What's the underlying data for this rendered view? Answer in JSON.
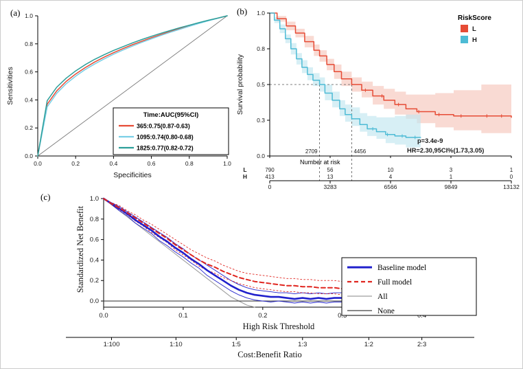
{
  "figure": {
    "background": "#ffffff",
    "border_color": "#cccccc"
  },
  "panels": {
    "a": {
      "label": "(a)"
    },
    "b": {
      "label": "(b)"
    },
    "c": {
      "label": "(c)"
    }
  },
  "chart_data": [
    {
      "id": "panel-a-roc",
      "type": "line",
      "xlabel": "Specificities",
      "ylabel": "Sensitivities",
      "xlim": [
        0,
        1
      ],
      "ylim": [
        0,
        1
      ],
      "xticks": [
        0,
        0.2,
        0.4,
        0.6,
        0.8,
        1
      ],
      "yticks": [
        0,
        0.2,
        0.4,
        0.6,
        0.8,
        1
      ],
      "diagonal_reference": true,
      "legend_title": "Time:AUC(95%CI)",
      "x": [
        0,
        0.05,
        0.1,
        0.15,
        0.2,
        0.25,
        0.3,
        0.35,
        0.4,
        0.45,
        0.5,
        0.55,
        0.6,
        0.65,
        0.7,
        0.75,
        0.8,
        0.85,
        0.9,
        0.95,
        1
      ],
      "series": [
        {
          "name": "365:0.75(0.87-0.63)",
          "color": "#e64b35",
          "y": [
            0,
            0.369,
            0.464,
            0.532,
            0.585,
            0.63,
            0.67,
            0.705,
            0.737,
            0.766,
            0.794,
            0.819,
            0.844,
            0.866,
            0.888,
            0.909,
            0.928,
            0.947,
            0.966,
            0.983,
            1
          ]
        },
        {
          "name": "1095:0.74(0.80-0.68)",
          "color": "#79cfe6",
          "y": [
            0,
            0.35,
            0.447,
            0.515,
            0.569,
            0.616,
            0.656,
            0.692,
            0.726,
            0.756,
            0.784,
            0.811,
            0.836,
            0.86,
            0.883,
            0.904,
            0.925,
            0.945,
            0.964,
            0.982,
            1
          ]
        },
        {
          "name": "1825:0.77(0.82-0.72)",
          "color": "#2b9e99",
          "y": [
            0,
            0.395,
            0.49,
            0.555,
            0.607,
            0.651,
            0.689,
            0.722,
            0.753,
            0.78,
            0.807,
            0.831,
            0.854,
            0.875,
            0.895,
            0.915,
            0.933,
            0.951,
            0.968,
            0.984,
            1
          ]
        }
      ]
    },
    {
      "id": "panel-b-km",
      "type": "line",
      "ylabel": "Survival probability",
      "xlim": [
        0,
        13132
      ],
      "xticks": [
        0,
        3283,
        6566,
        9849,
        13132
      ],
      "yticks": [
        {
          "value": 0,
          "label": "0.0"
        },
        {
          "value": 0.25,
          "label": "0.3"
        },
        {
          "value": 0.5,
          "label": "0.5"
        },
        {
          "value": 0.75,
          "label": "0.8"
        },
        {
          "value": 1,
          "label": "1.0"
        }
      ],
      "legend_title": "RiskScore",
      "groups": [
        {
          "name": "L",
          "color": "#e64b35",
          "fill": "#f6c6bc",
          "times": [
            0,
            400,
            900,
            1400,
            1900,
            2400,
            2709,
            3100,
            3500,
            3900,
            4456,
            5000,
            5600,
            6200,
            6800,
            7400,
            8000,
            9000,
            10000,
            11500,
            13132
          ],
          "surv": [
            1,
            0.96,
            0.91,
            0.86,
            0.8,
            0.74,
            0.7,
            0.64,
            0.59,
            0.54,
            0.5,
            0.46,
            0.42,
            0.39,
            0.36,
            0.33,
            0.31,
            0.29,
            0.28,
            0.28,
            0.27
          ],
          "lower": [
            1,
            0.94,
            0.88,
            0.83,
            0.76,
            0.7,
            0.66,
            0.6,
            0.54,
            0.49,
            0.45,
            0.41,
            0.36,
            0.33,
            0.29,
            0.26,
            0.23,
            0.2,
            0.18,
            0.16,
            0.13
          ],
          "upper": [
            1,
            0.98,
            0.94,
            0.89,
            0.84,
            0.78,
            0.74,
            0.68,
            0.64,
            0.59,
            0.55,
            0.52,
            0.49,
            0.47,
            0.45,
            0.43,
            0.43,
            0.44,
            0.46,
            0.5,
            0.55
          ],
          "censor_times": [
            5200,
            6100,
            7000,
            8100,
            9200,
            10400,
            11800,
            12600
          ]
        },
        {
          "name": "H",
          "color": "#4dbbd5",
          "fill": "#c2e7f0",
          "times": [
            0,
            250,
            550,
            850,
            1150,
            1450,
            1750,
            2050,
            2350,
            2709,
            3000,
            3400,
            3800,
            4100,
            4456,
            4900,
            5300,
            5800,
            6300,
            6800,
            7400,
            8200
          ],
          "surv": [
            1,
            0.95,
            0.89,
            0.82,
            0.75,
            0.68,
            0.62,
            0.57,
            0.53,
            0.5,
            0.44,
            0.39,
            0.33,
            0.29,
            0.26,
            0.22,
            0.19,
            0.17,
            0.15,
            0.14,
            0.13,
            0.13
          ],
          "lower": [
            1,
            0.93,
            0.86,
            0.79,
            0.71,
            0.64,
            0.58,
            0.53,
            0.49,
            0.45,
            0.39,
            0.34,
            0.28,
            0.24,
            0.21,
            0.17,
            0.14,
            0.12,
            0.09,
            0.08,
            0.06,
            0.05
          ],
          "upper": [
            1,
            0.97,
            0.92,
            0.85,
            0.79,
            0.72,
            0.67,
            0.62,
            0.58,
            0.55,
            0.5,
            0.45,
            0.39,
            0.36,
            0.34,
            0.3,
            0.28,
            0.27,
            0.27,
            0.28,
            0.29,
            0.3
          ],
          "censor_times": [
            5600,
            6400,
            7200,
            7900
          ]
        }
      ],
      "median_survival": {
        "probability": 0.5,
        "times": [
          2709,
          4456
        ],
        "labels": [
          "2709",
          "4456"
        ]
      },
      "annotations": [
        {
          "text": "p=3.4e-9",
          "color": "#1b3a6e"
        },
        {
          "text": "HR=2.30,95CI%(1.73,3.05)",
          "color": "#1b3a6e"
        }
      ],
      "number_at_risk": {
        "title": "Number at risk",
        "rows": [
          {
            "name": "L",
            "color": "#e64b35",
            "values": [
              "790",
              "56",
              "10",
              "3",
              "1"
            ]
          },
          {
            "name": "H",
            "color": "#4dbbd5",
            "values": [
              "413",
              "13",
              "4",
              "1",
              "0"
            ]
          }
        ]
      }
    },
    {
      "id": "panel-c-dca",
      "type": "line",
      "xlabel": "High Risk Threshold",
      "ylabel": "Standardized Net Benefit",
      "xlabel_secondary": "Cost:Benefit Ratio",
      "xlim": [
        0,
        0.44
      ],
      "ylim": [
        -0.06,
        1
      ],
      "xticks": [
        0,
        0.1,
        0.2,
        0.3,
        0.4
      ],
      "yticks": [
        0,
        0.2,
        0.4,
        0.6,
        0.8,
        1
      ],
      "cost_benefit_ticks": [
        {
          "label": "1:100",
          "threshold": 0.0099
        },
        {
          "label": "1:10",
          "threshold": 0.0909
        },
        {
          "label": "1:5",
          "threshold": 0.1667
        },
        {
          "label": "1:3",
          "threshold": 0.25
        },
        {
          "label": "1:2",
          "threshold": 0.3333
        },
        {
          "label": "2:3",
          "threshold": 0.4
        }
      ],
      "x": [
        0,
        0.01,
        0.02,
        0.03,
        0.04,
        0.05,
        0.06,
        0.07,
        0.08,
        0.09,
        0.1,
        0.11,
        0.12,
        0.13,
        0.14,
        0.15,
        0.16,
        0.17,
        0.18,
        0.19,
        0.2,
        0.21,
        0.22,
        0.23,
        0.24,
        0.25,
        0.26,
        0.27,
        0.28,
        0.29,
        0.3,
        0.31,
        0.32
      ],
      "series": [
        {
          "name": "Baseline model",
          "color": "#2020cc",
          "w": 2.6,
          "dash": "",
          "y": [
            1,
            0.95,
            0.9,
            0.85,
            0.79,
            0.74,
            0.69,
            0.63,
            0.58,
            0.52,
            0.47,
            0.41,
            0.36,
            0.3,
            0.25,
            0.2,
            0.15,
            0.11,
            0.08,
            0.06,
            0.05,
            0.04,
            0.04,
            0.03,
            0.02,
            0.03,
            0.02,
            0.03,
            0.02,
            0.03,
            0.03,
            0.02,
            0.03
          ]
        },
        {
          "name": "Baseline model CI upper",
          "color": "#2020cc",
          "w": 0.9,
          "dash": "",
          "y": [
            1,
            0.96,
            0.92,
            0.87,
            0.82,
            0.77,
            0.72,
            0.67,
            0.62,
            0.56,
            0.51,
            0.45,
            0.4,
            0.35,
            0.3,
            0.25,
            0.2,
            0.16,
            0.13,
            0.11,
            0.1,
            0.09,
            0.08,
            0.08,
            0.07,
            0.08,
            0.07,
            0.08,
            0.07,
            0.08,
            0.08,
            0.07,
            0.08
          ]
        },
        {
          "name": "Baseline model CI lower",
          "color": "#2020cc",
          "w": 0.9,
          "dash": "",
          "y": [
            1,
            0.94,
            0.88,
            0.83,
            0.76,
            0.71,
            0.66,
            0.59,
            0.54,
            0.48,
            0.43,
            0.37,
            0.32,
            0.25,
            0.2,
            0.15,
            0.1,
            0.06,
            0.03,
            0.01,
            0,
            -0.01,
            0,
            -0.01,
            -0.02,
            -0.01,
            -0.02,
            -0.01,
            -0.02,
            -0.01,
            -0.01,
            -0.02,
            -0.01
          ]
        },
        {
          "name": "Full model",
          "color": "#e0251f",
          "w": 2,
          "dash": "6,4",
          "y": [
            1,
            0.95,
            0.91,
            0.86,
            0.81,
            0.76,
            0.71,
            0.66,
            0.61,
            0.55,
            0.5,
            0.45,
            0.4,
            0.36,
            0.33,
            0.29,
            0.26,
            0.23,
            0.21,
            0.19,
            0.18,
            0.17,
            0.16,
            0.15,
            0.15,
            0.14,
            0.14,
            0.13,
            0.13,
            0.13,
            0.12,
            0.12,
            0.12
          ]
        },
        {
          "name": "Full model CI upper",
          "color": "#e0251f",
          "w": 0.9,
          "dash": "2,3",
          "y": [
            1,
            0.96,
            0.93,
            0.88,
            0.84,
            0.79,
            0.75,
            0.7,
            0.65,
            0.6,
            0.55,
            0.5,
            0.46,
            0.42,
            0.39,
            0.35,
            0.32,
            0.29,
            0.27,
            0.26,
            0.25,
            0.24,
            0.23,
            0.22,
            0.22,
            0.21,
            0.21,
            0.2,
            0.2,
            0.2,
            0.19,
            0.19,
            0.2
          ]
        },
        {
          "name": "Full model CI lower",
          "color": "#e0251f",
          "w": 0.9,
          "dash": "2,3",
          "y": [
            1,
            0.94,
            0.89,
            0.84,
            0.78,
            0.73,
            0.67,
            0.62,
            0.57,
            0.5,
            0.45,
            0.4,
            0.34,
            0.3,
            0.27,
            0.23,
            0.2,
            0.17,
            0.15,
            0.13,
            0.12,
            0.11,
            0.1,
            0.09,
            0.09,
            0.08,
            0.08,
            0.07,
            0.07,
            0.07,
            0.06,
            0.06,
            0.05
          ]
        }
      ],
      "reference_lines": [
        {
          "name": "All",
          "color": "#9e9e9e",
          "width": 1.1,
          "x": [
            0,
            0.02,
            0.04,
            0.06,
            0.08,
            0.1,
            0.12,
            0.14,
            0.16,
            0.18,
            0.19
          ],
          "y": [
            1,
            0.88,
            0.76,
            0.64,
            0.52,
            0.4,
            0.28,
            0.16,
            0.04,
            -0.04,
            -0.06
          ]
        },
        {
          "name": "None",
          "color": "#404040",
          "width": 1.1,
          "x": [
            0,
            0.44
          ],
          "y": [
            0,
            0
          ]
        }
      ],
      "legend": [
        {
          "label": "Baseline model",
          "color": "#2020cc",
          "style": "solid-thick"
        },
        {
          "label": "Full model",
          "color": "#e0251f",
          "style": "dashed"
        },
        {
          "label": "All",
          "color": "#9e9e9e",
          "style": "solid-thin"
        },
        {
          "label": "None",
          "color": "#404040",
          "style": "solid-thin"
        }
      ]
    }
  ]
}
